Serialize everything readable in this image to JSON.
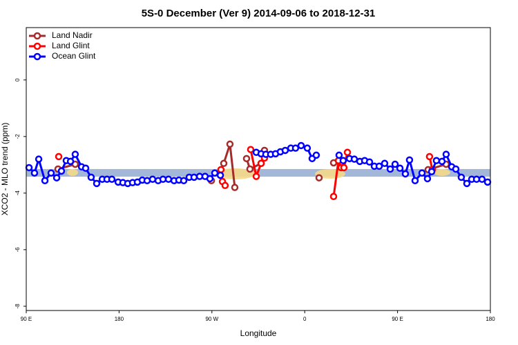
{
  "chart_data": {
    "type": "line",
    "title": "5S-0 December (Ver 9)   2014-09-06 to 2018-12-31",
    "x_label": "Longitude",
    "y_label": "XCO2 - MLO trend (ppm)",
    "xlim": [
      90,
      540
    ],
    "ylim": [
      -8.15,
      1.85
    ],
    "xticks": [
      {
        "value": 90,
        "label": "90 E"
      },
      180,
      {
        "value": 270,
        "label": "90 W"
      },
      {
        "value": 360,
        "label": "0"
      },
      {
        "value": 450,
        "label": "90 E"
      },
      {
        "value": 540,
        "label": "180"
      }
    ],
    "yticks": [
      0,
      -2,
      -4,
      -6,
      -8
    ],
    "band": {
      "range": [
        -3.42,
        -3.15
      ],
      "color": "#a3b8d8"
    },
    "legend": "top-left",
    "series": [
      {
        "name": "Land Nadir",
        "color": "#a52a2a",
        "x": [
          120.8,
          137.5,
          null,
          269.5,
          null,
          281.5,
          287.5,
          292.2,
          null,
          303.6,
          306.9,
          317.7,
          321.0,
          null,
          373.9,
          null,
          388.0,
          397.3,
          null,
          479.7,
          497.1
        ],
        "values": [
          -3.15,
          -2.98,
          null,
          -3.56,
          null,
          -2.95,
          -2.27,
          -3.8,
          null,
          -2.78,
          -3.15,
          -2.95,
          -2.49,
          null,
          -3.46,
          null,
          -2.93,
          -2.85,
          null,
          -3.17,
          -2.98
        ]
      },
      {
        "name": "Land Glint",
        "color": "#ff0000",
        "x": [
          121.5,
          null,
          278.8,
          280.2,
          282.8,
          null,
          307.6,
          313.0,
          317.7,
          321.0,
          null,
          388.0,
          392.7,
          395.3,
          398.0,
          401.4,
          null,
          481.0,
          483.7
        ],
        "values": [
          -2.71,
          null,
          -3.17,
          -3.59,
          -3.73,
          null,
          -2.46,
          -3.41,
          -2.95,
          -2.76,
          null,
          -4.12,
          -2.85,
          -3.1,
          -3.1,
          -2.56,
          null,
          -2.71,
          -3.17
        ]
      },
      {
        "name": "Ocean Glint",
        "color": "#0000ff",
        "x": [
          92.7,
          98.0,
          102.1,
          108.1,
          114.1,
          119.5,
          124.1,
          128.8,
          132.9,
          137.5,
          143.6,
          147.6,
          152.9,
          158.3,
          163.7,
          168.3,
          173.0,
          179.1,
          183.7,
          188.4,
          193.1,
          197.8,
          202.5,
          207.2,
          212.5,
          217.9,
          222.6,
          227.9,
          233.3,
          238.0,
          242.7,
          248.0,
          252.7,
          258.1,
          263.4,
          268.1,
          272.8,
          278.2,
          null,
          313.0,
          317.7,
          322.3,
          327.0,
          331.7,
          336.4,
          341.1,
          346.5,
          351.1,
          356.5,
          362.5,
          367.2,
          371.2,
          null,
          393.3,
          397.3,
          403.4,
          408.1,
          413.4,
          418.1,
          422.8,
          427.5,
          432.2,
          437.5,
          442.9,
          447.6,
          452.3,
          457.6,
          461.6,
          467.0,
          473.7,
          479.0,
          483.1,
          487.7,
          493.1,
          497.1,
          502.5,
          506.5,
          511.8,
          517.2,
          521.9,
          526.6,
          531.9,
          537.3
        ],
        "values": [
          -3.1,
          -3.29,
          -2.8,
          -3.56,
          -3.29,
          -3.46,
          -3.22,
          -2.85,
          -2.88,
          -2.63,
          -3.07,
          -3.12,
          -3.44,
          -3.66,
          -3.51,
          -3.51,
          -3.51,
          -3.61,
          -3.63,
          -3.66,
          -3.63,
          -3.61,
          -3.54,
          -3.56,
          -3.51,
          -3.56,
          -3.51,
          -3.51,
          -3.56,
          -3.54,
          -3.56,
          -3.44,
          -3.44,
          -3.41,
          -3.41,
          -3.49,
          -3.29,
          -3.37,
          null,
          -2.56,
          -2.61,
          -2.63,
          -2.63,
          -2.61,
          -2.54,
          -2.49,
          -2.41,
          -2.41,
          -2.32,
          -2.41,
          -2.78,
          -2.66,
          null,
          -2.66,
          -2.85,
          -2.78,
          -2.8,
          -2.88,
          -2.85,
          -2.9,
          -3.05,
          -3.05,
          -2.95,
          -3.15,
          -2.98,
          -3.12,
          -3.32,
          -2.83,
          -3.56,
          -3.29,
          -3.49,
          -3.24,
          -2.85,
          -2.88,
          -2.63,
          -3.07,
          -3.15,
          -3.44,
          -3.66,
          -3.51,
          -3.51,
          -3.51,
          -3.61
        ]
      }
    ]
  }
}
